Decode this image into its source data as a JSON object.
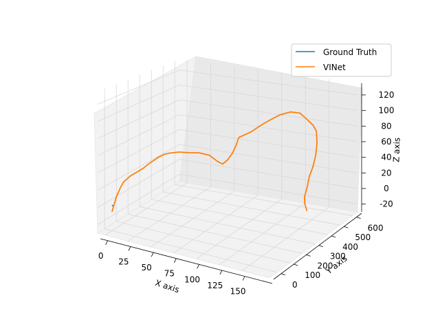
{
  "chart_data": {
    "type": "line",
    "projection": "3d",
    "title": "",
    "xlabel": "X axis",
    "ylabel": "Y axis",
    "zlabel": "Z axis",
    "xlim": [
      -8,
      180
    ],
    "ylim": [
      -60,
      640
    ],
    "zlim": [
      -30,
      135
    ],
    "xticks": [
      "0",
      "25",
      "50",
      "75",
      "100",
      "125",
      "150"
    ],
    "yticks": [
      "0",
      "100",
      "200",
      "300",
      "400",
      "500",
      "600"
    ],
    "zticks": [
      "-20",
      "0",
      "20",
      "40",
      "60",
      "80",
      "100",
      "120"
    ],
    "grid": true,
    "legend": "top-right",
    "colors": {
      "ground_truth": "#1f77b4",
      "vinet": "#ff7f0e"
    },
    "series": [
      {
        "name": "Ground Truth",
        "x": [
          0,
          1,
          2,
          3
        ],
        "y": [
          0,
          -3,
          -6,
          -9
        ],
        "z": [
          0,
          0,
          0,
          0
        ]
      },
      {
        "name": "VINet",
        "x": [
          0,
          4,
          8,
          10,
          15,
          26,
          32,
          40,
          45,
          50,
          58,
          66,
          76,
          85,
          92,
          96,
          100,
          104,
          107,
          108,
          108,
          111,
          118,
          126,
          134,
          143,
          152,
          160,
          166,
          170,
          171,
          169,
          165,
          160,
          154,
          150,
          145,
          144,
          145
        ],
        "y": [
          0,
          5,
          10,
          20,
          40,
          60,
          70,
          80,
          90,
          100,
          115,
          130,
          145,
          160,
          175,
          185,
          195,
          205,
          215,
          220,
          230,
          240,
          255,
          270,
          285,
          300,
          315,
          330,
          345,
          360,
          380,
          400,
          420,
          435,
          450,
          465,
          480,
          490,
          500
        ],
        "z": [
          -8,
          10,
          22,
          28,
          35,
          45,
          52,
          60,
          64,
          66,
          68,
          68,
          69,
          67,
          60,
          57,
          62,
          70,
          80,
          86,
          88,
          90,
          95,
          103,
          110,
          117,
          121,
          120,
          112,
          105,
          96,
          80,
          62,
          45,
          30,
          15,
          0,
          -10,
          -20
        ]
      }
    ]
  }
}
